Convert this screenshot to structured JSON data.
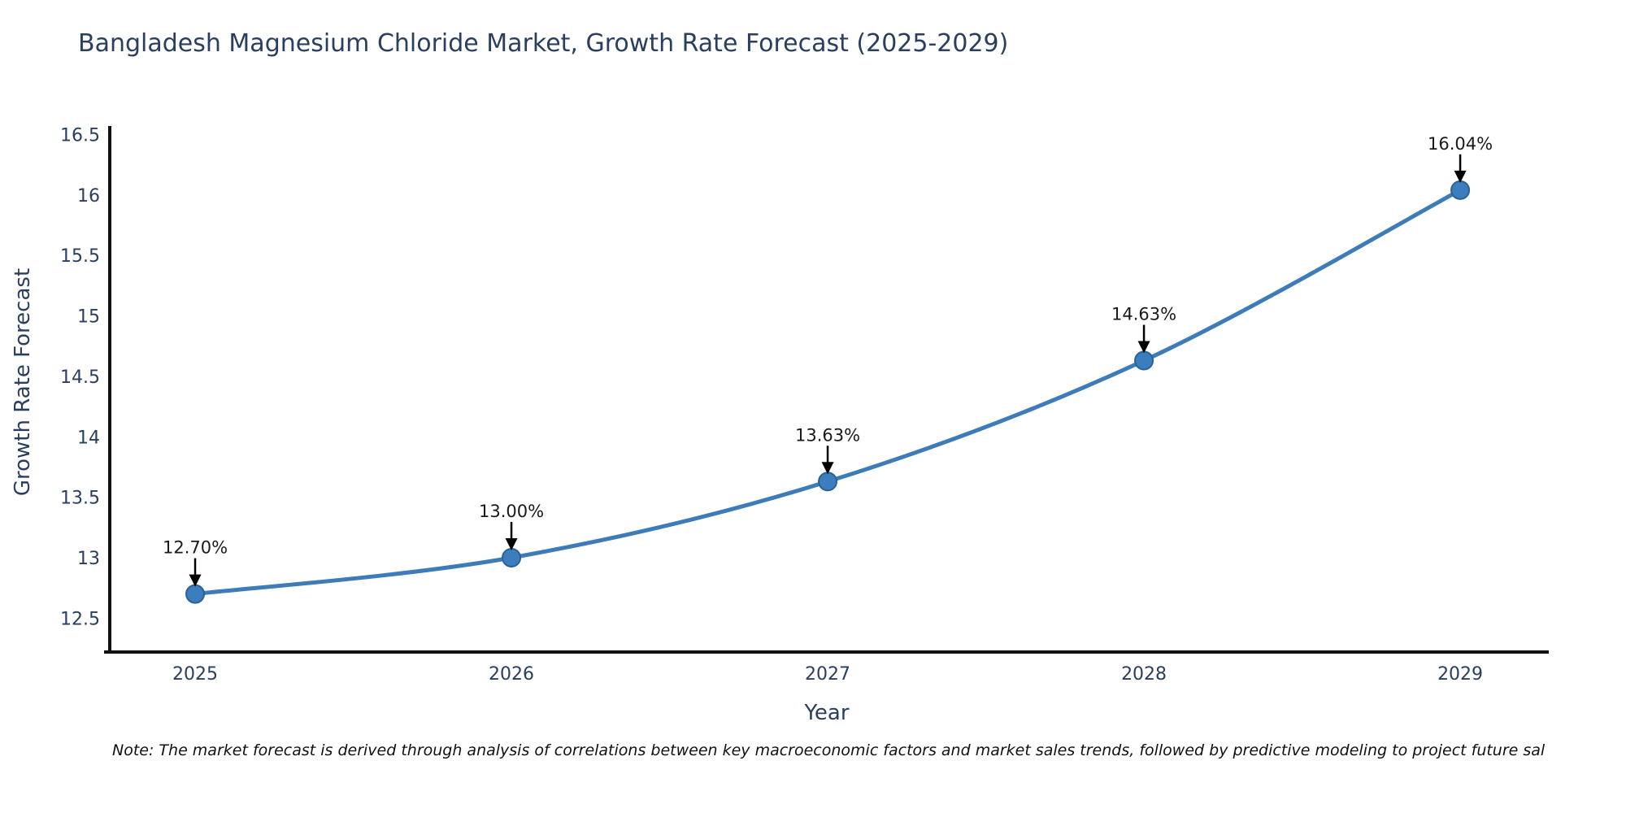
{
  "page": {
    "background": "#ffffff"
  },
  "chart_data": {
    "type": "line",
    "title": "Bangladesh Magnesium Chloride Market, Growth Rate Forecast (2025-2029)",
    "xlabel": "Year",
    "ylabel": "Growth Rate Forecast",
    "x": [
      2025,
      2026,
      2027,
      2028,
      2029
    ],
    "values": [
      12.7,
      13.0,
      13.63,
      14.63,
      16.04
    ],
    "point_labels": [
      "12.70%",
      "13.00%",
      "13.63%",
      "14.63%",
      "16.04%"
    ],
    "xtick_labels": [
      "2025",
      "2026",
      "2027",
      "2028",
      "2029"
    ],
    "ytick_values": [
      12.5,
      13,
      13.5,
      14,
      14.5,
      15,
      15.5,
      16,
      16.5
    ],
    "ytick_labels": [
      "12.5",
      "13",
      "13.5",
      "14",
      "14.5",
      "15",
      "15.5",
      "16",
      "16.5"
    ],
    "xlim": [
      2024.73,
      2029.28
    ],
    "ylim": [
      12.22,
      16.57
    ],
    "grid": false,
    "legend": "none",
    "line_shape": "spline",
    "colors": {
      "line": "#3E7CB9",
      "marker_fill": "#3B7DBD",
      "marker_edge": "#2A6298",
      "axis": "#111111",
      "tick_text": "#2a3f5f",
      "annotation_text": "#1a1a1a",
      "arrow": "#000000",
      "title_text": "#2a3f5f"
    }
  },
  "note": {
    "text": "Note: The market forecast is derived through analysis of correlations between key macroeconomic factors and market sales trends, followed by predictive modeling to project future sal"
  }
}
